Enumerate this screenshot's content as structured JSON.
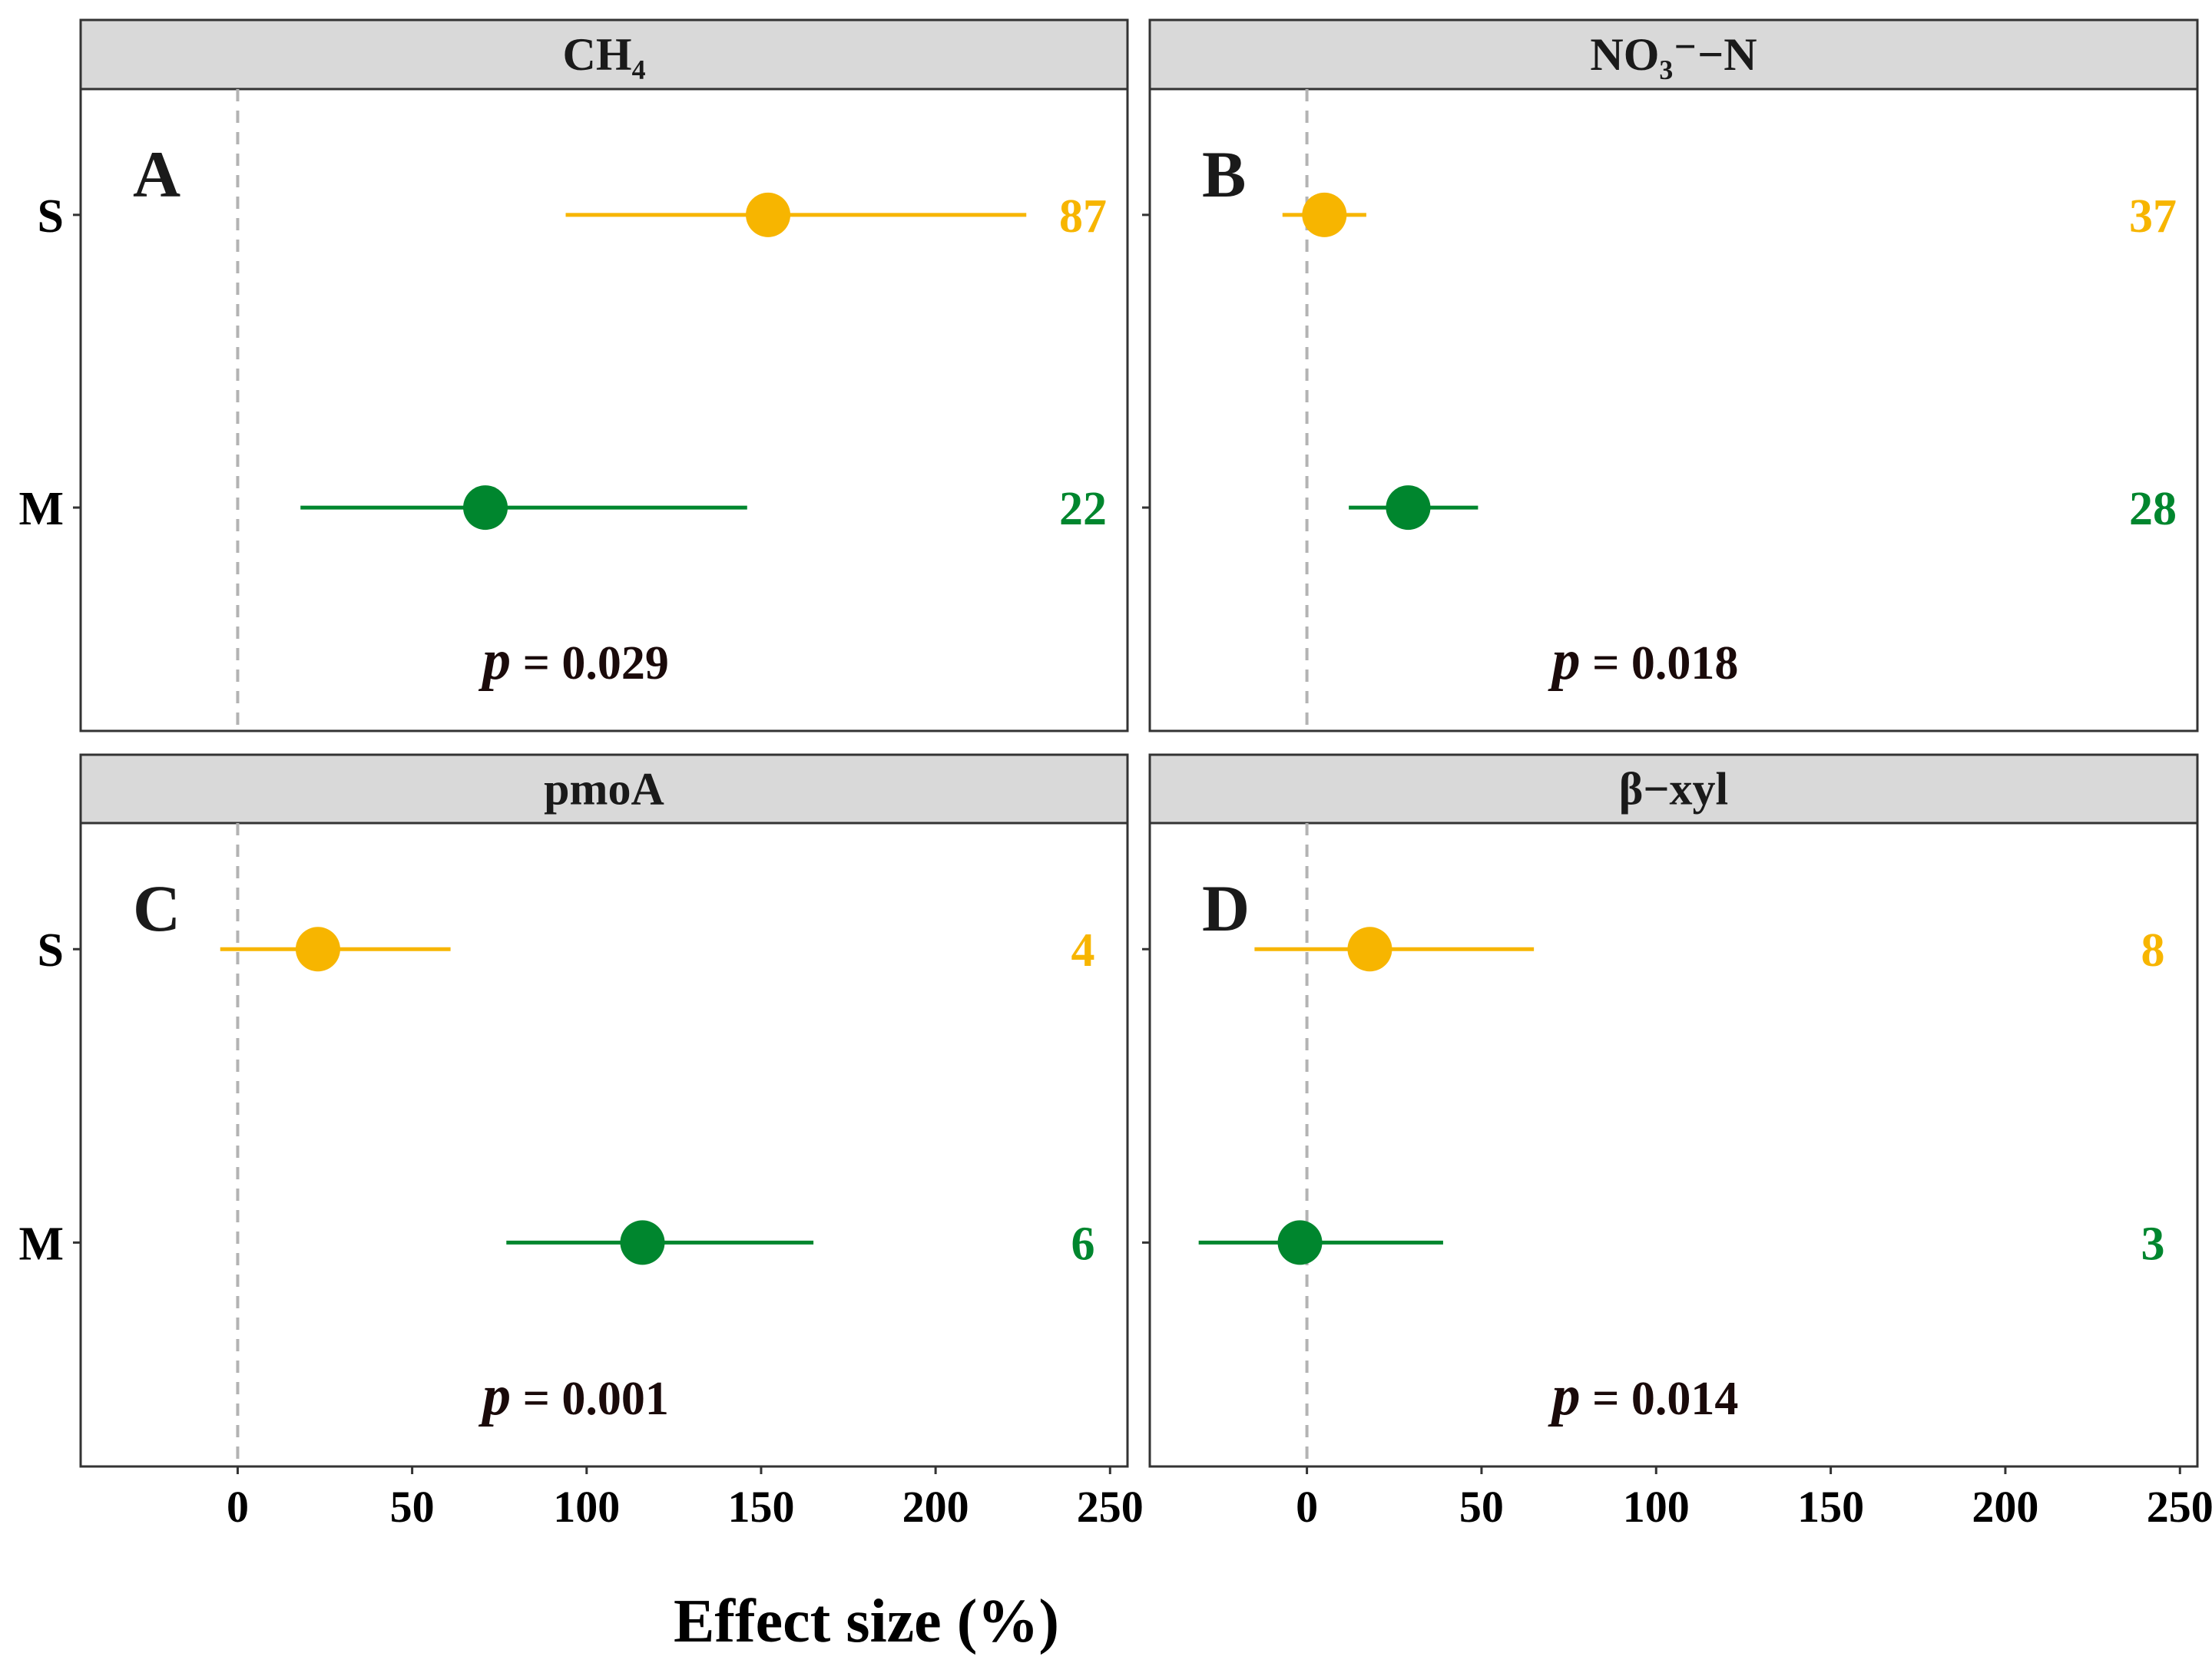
{
  "colors": {
    "S": "#F7B500",
    "M": "#00862E"
  },
  "chart_data": {
    "type": "forest",
    "xlabel": "Effect size (%)",
    "xlim": [
      -45,
      255
    ],
    "xticks": [
      0,
      50,
      100,
      150,
      200,
      250
    ],
    "xtick_labels": [
      "0",
      "50",
      "100",
      "150",
      "200",
      "250"
    ],
    "categories": [
      "S",
      "M"
    ],
    "panels": [
      {
        "strip": "CH₄",
        "letter": "A",
        "p_prefix": "p",
        "p_text": " = 0.029",
        "groups": [
          {
            "name": "S",
            "estimate": 152,
            "ci_low": 94,
            "ci_high": 226,
            "n": "87"
          },
          {
            "name": "M",
            "estimate": 71,
            "ci_low": 18,
            "ci_high": 146,
            "n": "22"
          }
        ]
      },
      {
        "strip": "NO₃⁻−N",
        "letter": "B",
        "p_prefix": "p",
        "p_text": " = 0.018",
        "groups": [
          {
            "name": "S",
            "estimate": 5,
            "ci_low": -7,
            "ci_high": 17,
            "n": "37"
          },
          {
            "name": "M",
            "estimate": 29,
            "ci_low": 12,
            "ci_high": 49,
            "n": "28"
          }
        ]
      },
      {
        "strip": "pmoA",
        "letter": "C",
        "p_prefix": "p",
        "p_text": " = 0.001",
        "groups": [
          {
            "name": "S",
            "estimate": 23,
            "ci_low": -5,
            "ci_high": 61,
            "n": "4"
          },
          {
            "name": "M",
            "estimate": 116,
            "ci_low": 77,
            "ci_high": 165,
            "n": "6"
          }
        ]
      },
      {
        "strip": "β−xyl",
        "letter": "D",
        "p_prefix": "p",
        "p_text": " = 0.014",
        "groups": [
          {
            "name": "S",
            "estimate": 18,
            "ci_low": -15,
            "ci_high": 65,
            "n": "8"
          },
          {
            "name": "M",
            "estimate": -2,
            "ci_low": -31,
            "ci_high": 39,
            "n": "3"
          }
        ]
      }
    ]
  }
}
